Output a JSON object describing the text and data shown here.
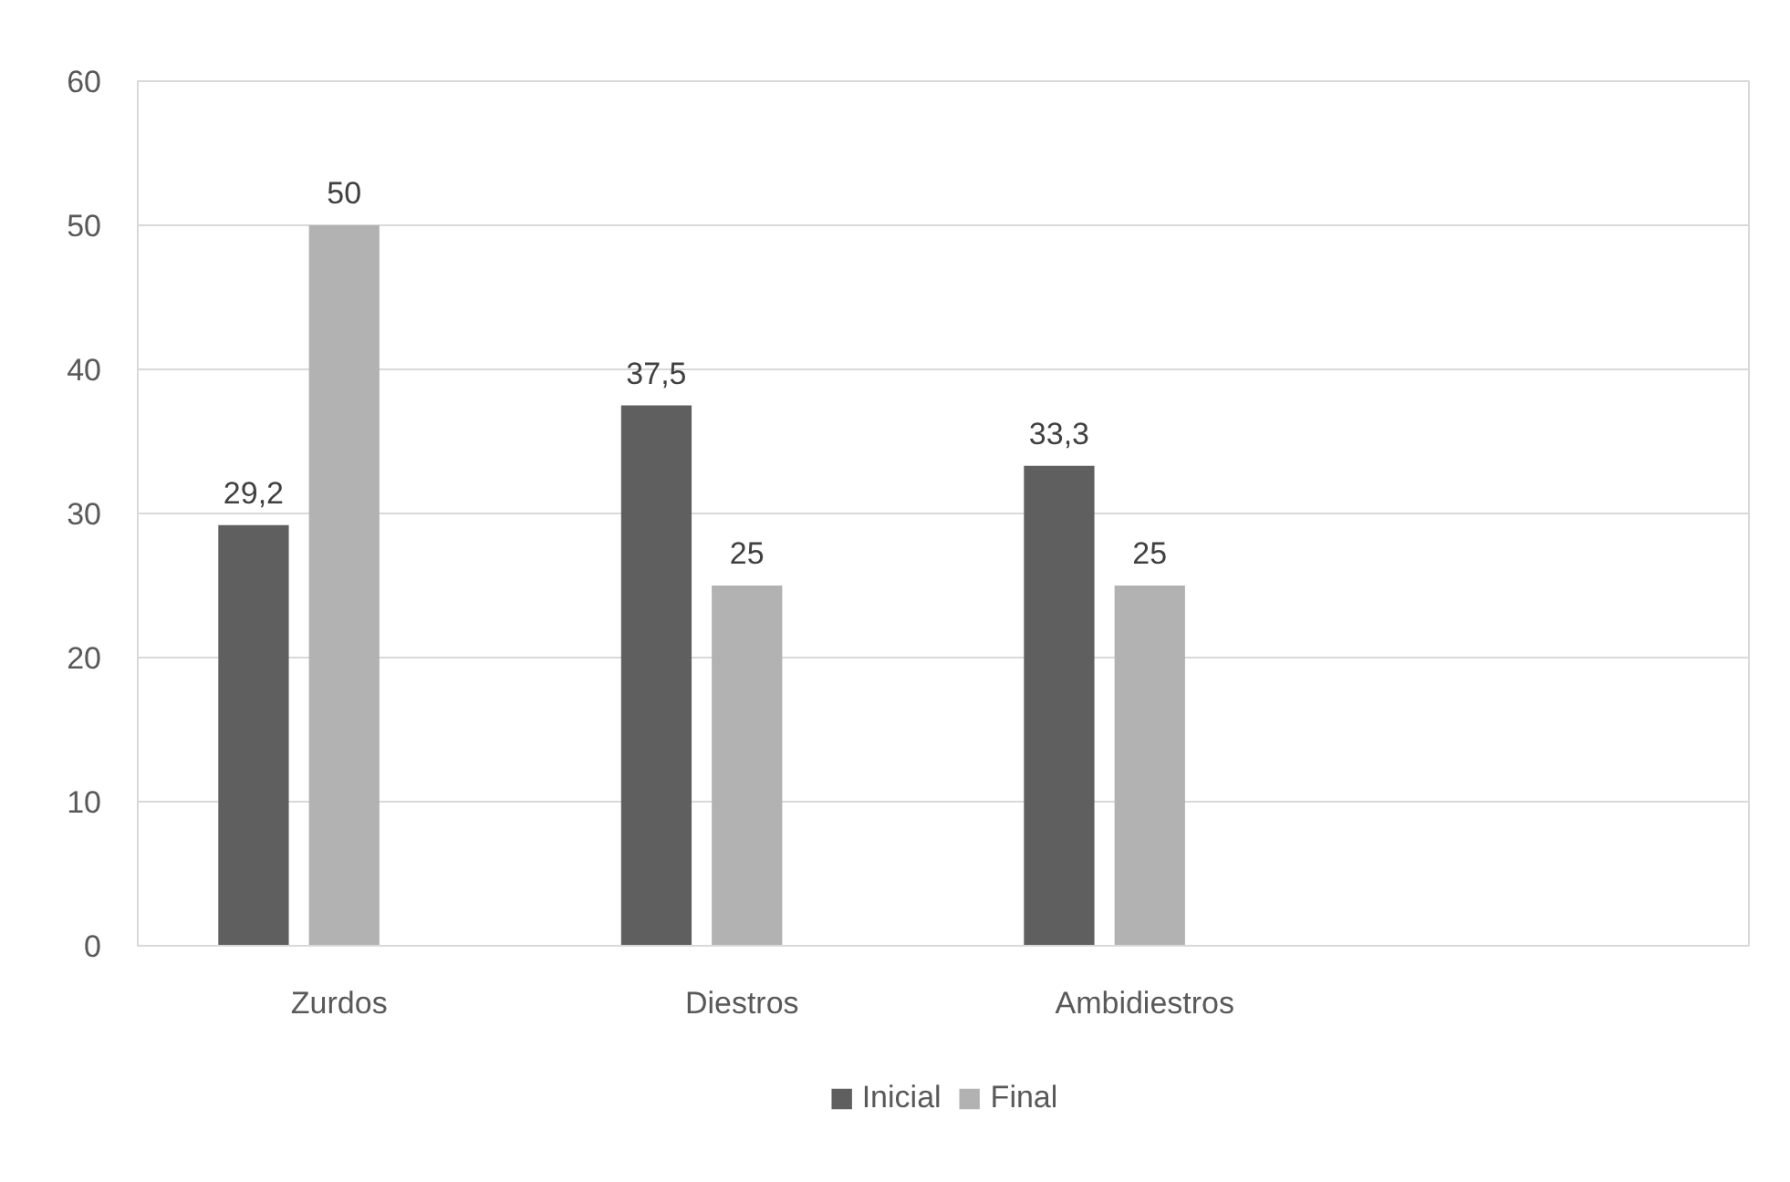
{
  "chart_data": {
    "type": "bar",
    "categories": [
      "Zurdos",
      "Diestros",
      "Ambidiestros",
      null
    ],
    "series": [
      {
        "name": "Inicial",
        "color": "#5f5f5f",
        "values": [
          29.2,
          37.5,
          33.3,
          null
        ],
        "value_labels": [
          "29,2",
          "37,5",
          "33,3",
          null
        ]
      },
      {
        "name": "Final",
        "color": "#b2b2b2",
        "values": [
          50,
          25,
          25,
          null
        ],
        "value_labels": [
          "50",
          "25",
          "25",
          null
        ]
      }
    ],
    "ylim": [
      0,
      60
    ],
    "yticks": [
      0,
      10,
      20,
      30,
      40,
      50,
      60
    ],
    "grid": "y",
    "legend": "bottom"
  }
}
